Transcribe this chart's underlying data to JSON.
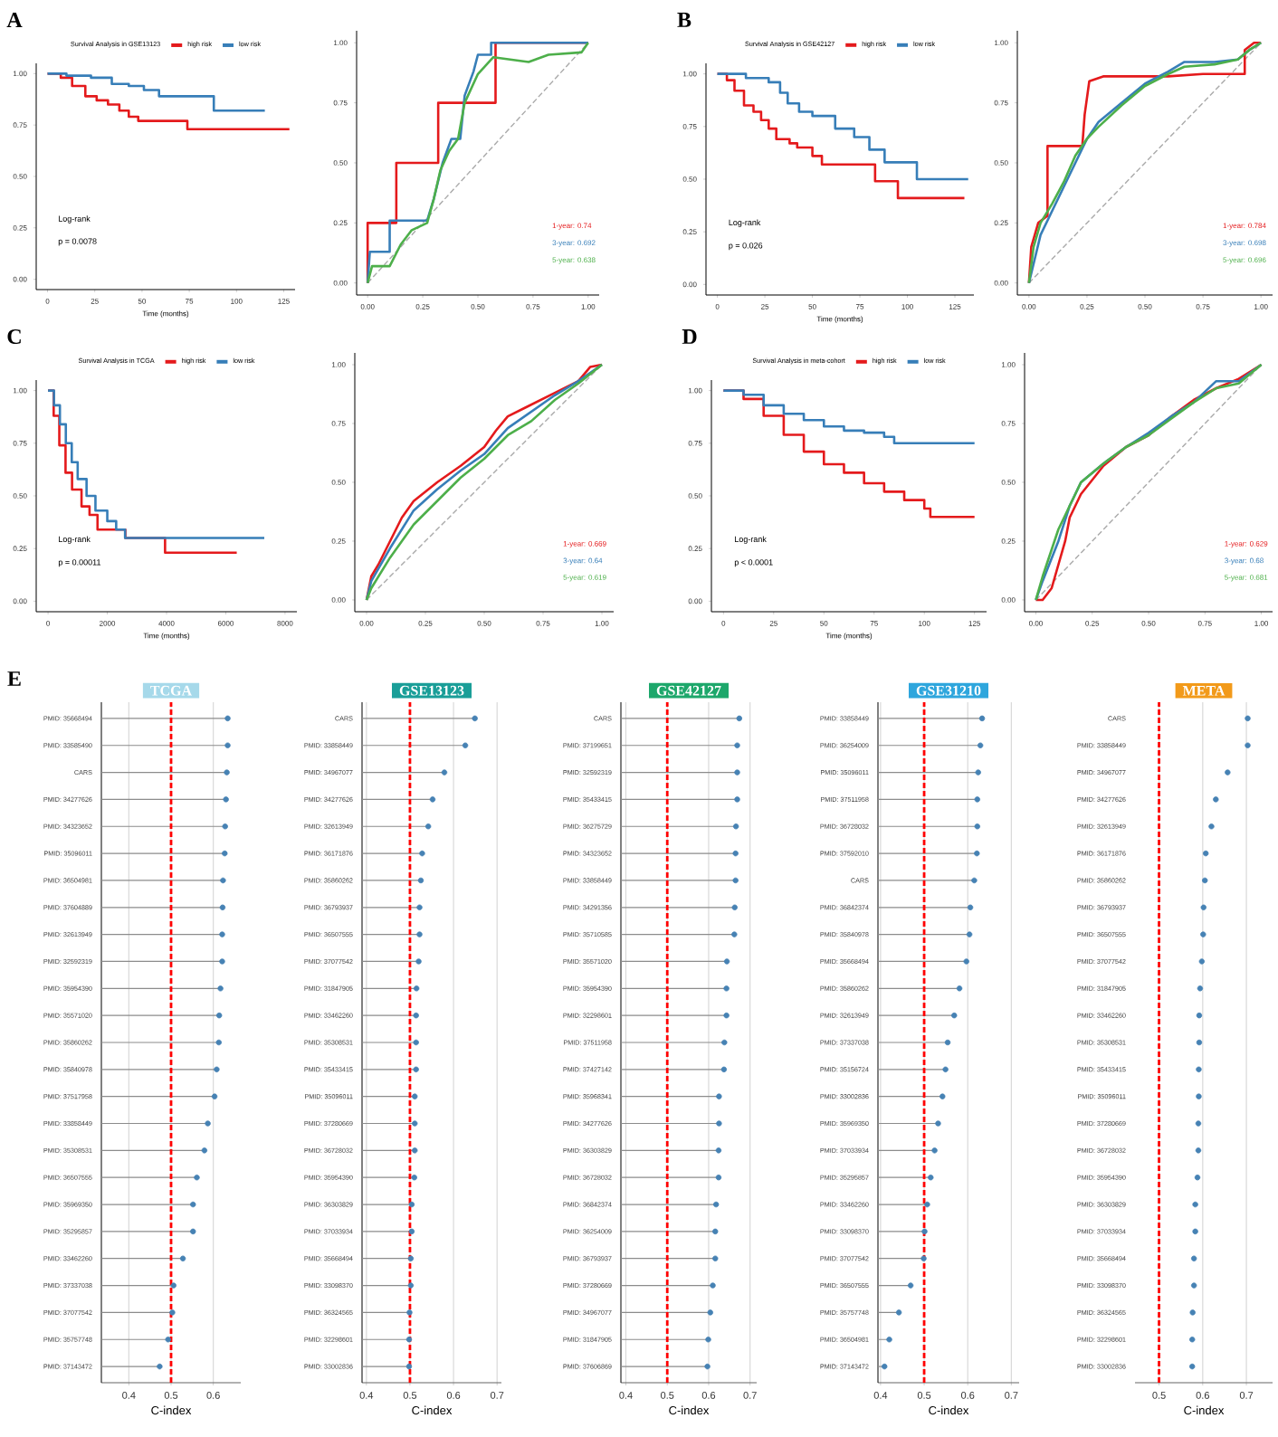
{
  "chart_data": [
    {
      "type": "step",
      "legend_title": "Survival Analysis in GSE13123",
      "legend": "top",
      "xlabel": "Time (months)",
      "xlim": [
        -6,
        131
      ],
      "xticks": [
        0,
        25,
        50,
        75,
        100,
        125
      ],
      "ylim": [
        -0.05,
        1.05
      ],
      "yticks": [
        {
          "value": 0,
          "label": "0.00"
        },
        {
          "value": 0.25,
          "label": "0.25"
        },
        {
          "value": 0.5,
          "label": "0.50"
        },
        {
          "value": 0.75,
          "label": "0.75"
        },
        {
          "value": 1,
          "label": "1.00"
        }
      ],
      "annotations": [
        "A",
        "Log-rank",
        "p = 0.0078"
      ],
      "series": [
        {
          "name": "high risk",
          "color": "#e41a1c",
          "x": [
            0,
            7,
            13,
            20,
            26,
            32,
            38,
            43,
            48,
            74,
            128
          ],
          "values": [
            1.0,
            0.98,
            0.94,
            0.89,
            0.87,
            0.85,
            0.82,
            0.79,
            0.77,
            0.73,
            0.73
          ]
        },
        {
          "name": "low risk",
          "color": "#377eb8",
          "x": [
            0,
            10,
            23,
            34,
            43,
            51,
            59,
            88,
            115
          ],
          "values": [
            1.0,
            0.99,
            0.98,
            0.95,
            0.94,
            0.92,
            0.89,
            0.82,
            0.82
          ]
        }
      ]
    },
    {
      "type": "line",
      "xlim": [
        -0.05,
        1.05
      ],
      "xticks": [
        {
          "value": 0,
          "label": "0.00"
        },
        {
          "value": 0.25,
          "label": "0.25"
        },
        {
          "value": 0.5,
          "label": "0.50"
        },
        {
          "value": 0.75,
          "label": "0.75"
        },
        {
          "value": 1,
          "label": "1.00"
        }
      ],
      "ylim": [
        -0.05,
        1.05
      ],
      "yticks": [
        {
          "value": 0,
          "label": "0.00"
        },
        {
          "value": 0.25,
          "label": "0.25"
        },
        {
          "value": 0.5,
          "label": "0.50"
        },
        {
          "value": 0.75,
          "label": "0.75"
        },
        {
          "value": 1,
          "label": "1.00"
        }
      ],
      "series": [
        {
          "color": "#aaaaaa",
          "line_style": "dashed",
          "x": [
            0,
            1
          ],
          "values": [
            0,
            1
          ]
        },
        {
          "name": "1-year: 0.74",
          "color": "#e41a1c",
          "x": [
            0,
            0,
            0.13,
            0.13,
            0.32,
            0.32,
            0.58,
            0.58,
            1
          ],
          "values": [
            0,
            0.25,
            0.25,
            0.5,
            0.5,
            0.75,
            0.75,
            1.0,
            1.0
          ]
        },
        {
          "name": "3-year: 0.692",
          "color": "#377eb8",
          "x": [
            0,
            0.01,
            0.1,
            0.1,
            0.27,
            0.3,
            0.34,
            0.38,
            0.42,
            0.44,
            0.48,
            0.5,
            0.56,
            0.56,
            1.0
          ],
          "values": [
            0,
            0.13,
            0.13,
            0.26,
            0.26,
            0.35,
            0.5,
            0.6,
            0.6,
            0.78,
            0.88,
            0.95,
            0.95,
            1.0,
            1.0
          ]
        },
        {
          "name": "5-year: 0.638",
          "color": "#4daf4a",
          "x": [
            0,
            0.02,
            0.1,
            0.15,
            0.2,
            0.27,
            0.3,
            0.33,
            0.37,
            0.41,
            0.44,
            0.47,
            0.5,
            0.57,
            0.73,
            0.82,
            0.97,
            1.0
          ],
          "values": [
            0,
            0.07,
            0.07,
            0.16,
            0.22,
            0.25,
            0.35,
            0.47,
            0.55,
            0.6,
            0.75,
            0.81,
            0.87,
            0.94,
            0.92,
            0.95,
            0.96,
            1.0
          ]
        }
      ]
    },
    {
      "type": "step",
      "legend_title": "Survival Analysis in GSE42127",
      "legend": "top",
      "xlabel": "Time (months)",
      "xlim": [
        -6,
        135
      ],
      "xticks": [
        0,
        25,
        50,
        75,
        100,
        125
      ],
      "ylim": [
        -0.05,
        1.05
      ],
      "yticks": [
        {
          "value": 0,
          "label": "0.00"
        },
        {
          "value": 0.25,
          "label": "0.25"
        },
        {
          "value": 0.5,
          "label": "0.50"
        },
        {
          "value": 0.75,
          "label": "0.75"
        },
        {
          "value": 1,
          "label": "1.00"
        }
      ],
      "annotations": [
        "B",
        "Log-rank",
        "p = 0.026"
      ],
      "series": [
        {
          "name": "high risk",
          "color": "#e41a1c",
          "x": [
            0,
            5,
            9,
            14,
            19,
            23,
            27,
            31,
            38,
            42,
            50,
            55,
            83,
            95,
            130
          ],
          "values": [
            1.0,
            0.97,
            0.92,
            0.85,
            0.82,
            0.78,
            0.74,
            0.69,
            0.67,
            0.65,
            0.61,
            0.57,
            0.49,
            0.41,
            0.41
          ]
        },
        {
          "name": "low risk",
          "color": "#377eb8",
          "x": [
            0,
            15,
            27,
            33,
            37,
            43,
            50,
            62,
            72,
            80,
            88,
            105,
            132
          ],
          "values": [
            1.0,
            0.98,
            0.96,
            0.91,
            0.86,
            0.82,
            0.8,
            0.74,
            0.7,
            0.64,
            0.58,
            0.5,
            0.5
          ]
        }
      ]
    },
    {
      "type": "line",
      "xlim": [
        -0.05,
        1.05
      ],
      "xticks": [
        {
          "value": 0,
          "label": "0.00"
        },
        {
          "value": 0.25,
          "label": "0.25"
        },
        {
          "value": 0.5,
          "label": "0.50"
        },
        {
          "value": 0.75,
          "label": "0.75"
        },
        {
          "value": 1,
          "label": "1.00"
        }
      ],
      "ylim": [
        -0.05,
        1.05
      ],
      "yticks": [
        {
          "value": 0,
          "label": "0.00"
        },
        {
          "value": 0.25,
          "label": "0.25"
        },
        {
          "value": 0.5,
          "label": "0.50"
        },
        {
          "value": 0.75,
          "label": "0.75"
        },
        {
          "value": 1,
          "label": "1.00"
        }
      ],
      "series": [
        {
          "color": "#aaaaaa",
          "line_style": "dashed",
          "x": [
            0,
            1
          ],
          "values": [
            0,
            1
          ]
        },
        {
          "name": "1-year: 0.784",
          "color": "#e41a1c",
          "x": [
            0,
            0.01,
            0.04,
            0.08,
            0.08,
            0.23,
            0.24,
            0.26,
            0.32,
            0.6,
            0.75,
            0.93,
            0.93,
            0.97,
            1
          ],
          "values": [
            0,
            0.15,
            0.25,
            0.28,
            0.57,
            0.57,
            0.7,
            0.84,
            0.86,
            0.86,
            0.87,
            0.87,
            0.97,
            1.0,
            1.0
          ]
        },
        {
          "name": "3-year: 0.698",
          "color": "#377eb8",
          "x": [
            0,
            0.02,
            0.05,
            0.1,
            0.15,
            0.2,
            0.25,
            0.3,
            0.4,
            0.5,
            0.6,
            0.67,
            0.8,
            0.9,
            0.95,
            1
          ],
          "values": [
            0,
            0.08,
            0.2,
            0.3,
            0.4,
            0.5,
            0.6,
            0.67,
            0.75,
            0.83,
            0.88,
            0.92,
            0.92,
            0.93,
            0.97,
            1.0
          ]
        },
        {
          "name": "5-year: 0.696",
          "color": "#4daf4a",
          "x": [
            0,
            0.02,
            0.05,
            0.1,
            0.15,
            0.2,
            0.25,
            0.3,
            0.4,
            0.5,
            0.6,
            0.67,
            0.8,
            0.9,
            0.95,
            1
          ],
          "values": [
            0,
            0.15,
            0.25,
            0.33,
            0.42,
            0.53,
            0.6,
            0.65,
            0.74,
            0.82,
            0.87,
            0.9,
            0.91,
            0.93,
            0.97,
            1.0
          ]
        }
      ]
    },
    {
      "type": "step",
      "legend_title": "Survival Analysis in TCGA",
      "legend": "top",
      "xlabel": "Time (months)",
      "xlim": [
        -400,
        8400
      ],
      "xticks": [
        0,
        2000,
        4000,
        6000,
        8000
      ],
      "ylim": [
        -0.05,
        1.05
      ],
      "yticks": [
        {
          "value": 0,
          "label": "0.00"
        },
        {
          "value": 0.25,
          "label": "0.25"
        },
        {
          "value": 0.5,
          "label": "0.50"
        },
        {
          "value": 0.75,
          "label": "0.75"
        },
        {
          "value": 1,
          "label": "1.00"
        }
      ],
      "annotations": [
        "C",
        "Log-rank",
        "p = 0.00011"
      ],
      "series": [
        {
          "name": "high risk",
          "color": "#e41a1c",
          "x": [
            0,
            190,
            380,
            590,
            810,
            1130,
            1400,
            1670,
            2610,
            3950,
            6370
          ],
          "values": [
            1.0,
            0.88,
            0.74,
            0.61,
            0.53,
            0.45,
            0.41,
            0.34,
            0.3,
            0.23,
            0.23
          ]
        },
        {
          "name": "low risk",
          "color": "#377eb8",
          "x": [
            0,
            200,
            400,
            600,
            800,
            1000,
            1300,
            1600,
            2000,
            2300,
            2600,
            7300
          ],
          "values": [
            1.0,
            0.93,
            0.84,
            0.75,
            0.66,
            0.58,
            0.5,
            0.43,
            0.38,
            0.34,
            0.3,
            0.3
          ]
        }
      ]
    },
    {
      "type": "line",
      "xlim": [
        -0.05,
        1.05
      ],
      "xticks": [
        {
          "value": 0,
          "label": "0.00"
        },
        {
          "value": 0.25,
          "label": "0.25"
        },
        {
          "value": 0.5,
          "label": "0.50"
        },
        {
          "value": 0.75,
          "label": "0.75"
        },
        {
          "value": 1,
          "label": "1.00"
        }
      ],
      "ylim": [
        -0.05,
        1.05
      ],
      "yticks": [
        {
          "value": 0,
          "label": "0.00"
        },
        {
          "value": 0.25,
          "label": "0.25"
        },
        {
          "value": 0.5,
          "label": "0.50"
        },
        {
          "value": 0.75,
          "label": "0.75"
        },
        {
          "value": 1,
          "label": "1.00"
        }
      ],
      "series": [
        {
          "color": "#aaaaaa",
          "line_style": "dashed",
          "x": [
            0,
            1
          ],
          "values": [
            0,
            1
          ]
        },
        {
          "name": "1-year: 0.669",
          "color": "#e41a1c",
          "x": [
            0,
            0.02,
            0.05,
            0.1,
            0.15,
            0.2,
            0.3,
            0.4,
            0.5,
            0.55,
            0.6,
            0.68,
            0.8,
            0.9,
            0.95,
            1
          ],
          "values": [
            0,
            0.1,
            0.15,
            0.25,
            0.35,
            0.42,
            0.5,
            0.57,
            0.65,
            0.72,
            0.78,
            0.82,
            0.88,
            0.93,
            0.99,
            1.0
          ]
        },
        {
          "name": "3-year: 0.64",
          "color": "#377eb8",
          "x": [
            0,
            0.02,
            0.1,
            0.2,
            0.3,
            0.4,
            0.5,
            0.6,
            0.7,
            0.8,
            0.9,
            1
          ],
          "values": [
            0,
            0.08,
            0.22,
            0.38,
            0.47,
            0.55,
            0.62,
            0.73,
            0.8,
            0.87,
            0.93,
            1.0
          ]
        },
        {
          "name": "5-year: 0.619",
          "color": "#4daf4a",
          "x": [
            0,
            0.02,
            0.1,
            0.2,
            0.3,
            0.4,
            0.5,
            0.6,
            0.7,
            0.8,
            0.9,
            1
          ],
          "values": [
            0,
            0.05,
            0.18,
            0.32,
            0.42,
            0.52,
            0.6,
            0.7,
            0.76,
            0.85,
            0.92,
            1.0
          ]
        }
      ]
    },
    {
      "type": "step",
      "legend_title": "Survival Analysis in meta-cohort",
      "legend": "top",
      "xlabel": "Time (months)",
      "xlim": [
        -6,
        131
      ],
      "xticks": [
        0,
        25,
        50,
        75,
        100,
        125
      ],
      "ylim": [
        -0.05,
        1.05
      ],
      "yticks": [
        {
          "value": 0,
          "label": "0.00"
        },
        {
          "value": 0.25,
          "label": "0.25"
        },
        {
          "value": 0.5,
          "label": "0.50"
        },
        {
          "value": 0.75,
          "label": "0.75"
        },
        {
          "value": 1,
          "label": "1.00"
        }
      ],
      "annotations": [
        "D",
        "Log-rank",
        "p < 0.0001"
      ],
      "series": [
        {
          "name": "high risk",
          "color": "#e41a1c",
          "x": [
            0,
            10,
            20,
            30,
            40,
            50,
            60,
            70,
            80,
            90,
            100,
            103,
            125
          ],
          "values": [
            1.0,
            0.96,
            0.88,
            0.79,
            0.71,
            0.65,
            0.61,
            0.56,
            0.52,
            0.48,
            0.44,
            0.4,
            0.4
          ]
        },
        {
          "name": "low risk",
          "color": "#377eb8",
          "x": [
            0,
            10,
            20,
            30,
            40,
            50,
            60,
            70,
            80,
            85,
            125
          ],
          "values": [
            1.0,
            0.98,
            0.93,
            0.89,
            0.86,
            0.83,
            0.81,
            0.8,
            0.78,
            0.75,
            0.75
          ]
        }
      ]
    },
    {
      "type": "line",
      "xlim": [
        -0.05,
        1.05
      ],
      "xticks": [
        {
          "value": 0,
          "label": "0.00"
        },
        {
          "value": 0.25,
          "label": "0.25"
        },
        {
          "value": 0.5,
          "label": "0.50"
        },
        {
          "value": 0.75,
          "label": "0.75"
        },
        {
          "value": 1,
          "label": "1.00"
        }
      ],
      "ylim": [
        -0.05,
        1.05
      ],
      "yticks": [
        {
          "value": 0,
          "label": "0.00"
        },
        {
          "value": 0.25,
          "label": "0.25"
        },
        {
          "value": 0.5,
          "label": "0.50"
        },
        {
          "value": 0.75,
          "label": "0.75"
        },
        {
          "value": 1,
          "label": "1.00"
        }
      ],
      "series": [
        {
          "color": "#aaaaaa",
          "line_style": "dashed",
          "x": [
            0,
            1
          ],
          "values": [
            0,
            1
          ]
        },
        {
          "name": "1-year: 0.629",
          "color": "#e41a1c",
          "x": [
            0,
            0.03,
            0.07,
            0.1,
            0.13,
            0.15,
            0.2,
            0.3,
            0.4,
            0.5,
            0.6,
            0.7,
            0.8,
            0.9,
            1
          ],
          "values": [
            0,
            0,
            0.05,
            0.15,
            0.25,
            0.35,
            0.45,
            0.57,
            0.65,
            0.7,
            0.78,
            0.85,
            0.9,
            0.94,
            1.0
          ]
        },
        {
          "name": "3-year: 0.68",
          "color": "#377eb8",
          "x": [
            0,
            0.03,
            0.1,
            0.15,
            0.2,
            0.3,
            0.4,
            0.5,
            0.6,
            0.7,
            0.8,
            0.9,
            1
          ],
          "values": [
            0,
            0.08,
            0.25,
            0.4,
            0.5,
            0.58,
            0.65,
            0.71,
            0.78,
            0.84,
            0.93,
            0.93,
            1.0
          ]
        },
        {
          "name": "5-year: 0.681",
          "color": "#4daf4a",
          "x": [
            0,
            0.03,
            0.1,
            0.15,
            0.2,
            0.3,
            0.4,
            0.5,
            0.6,
            0.7,
            0.8,
            0.9,
            1
          ],
          "values": [
            0,
            0.1,
            0.3,
            0.4,
            0.5,
            0.58,
            0.65,
            0.7,
            0.77,
            0.84,
            0.9,
            0.92,
            1.0
          ]
        }
      ]
    },
    {
      "type": "lollipop",
      "orientation": "horizontal",
      "title": "TCGA",
      "xlabel": "C-index",
      "color": "#4682b4",
      "marker": "circle",
      "grid": "x",
      "xlim": [
        0.335,
        0.665
      ],
      "xticks": [
        0.4,
        0.5,
        0.6
      ],
      "annotations": [
        "E"
      ],
      "ref_lines": [
        {
          "axis": "x",
          "value": 0.5,
          "color": "#ff0000",
          "line_style": "dashed"
        }
      ],
      "categories": [
        "PMID: 35668494",
        "PMID: 33585490",
        "CARS",
        "PMID: 34277626",
        "PMID: 34323652",
        "PMID: 35096011",
        "PMID: 36504981",
        "PMID: 37604889",
        "PMID: 32613949",
        "PMID: 32592319",
        "PMID: 35954390",
        "PMID: 35571020",
        "PMID: 35860262",
        "PMID: 35840978",
        "PMID: 37517958",
        "PMID: 33858449",
        "PMID: 35308531",
        "PMID: 36507555",
        "PMID: 35969350",
        "PMID: 35295857",
        "PMID: 33462260",
        "PMID: 37337038",
        "PMID: 37077542",
        "PMID: 35757748",
        "PMID: 37143472"
      ],
      "values": [
        0.634,
        0.634,
        0.632,
        0.63,
        0.628,
        0.627,
        0.623,
        0.622,
        0.621,
        0.621,
        0.617,
        0.614,
        0.613,
        0.608,
        0.603,
        0.587,
        0.579,
        0.561,
        0.552,
        0.552,
        0.528,
        0.506,
        0.503,
        0.493,
        0.473
      ]
    },
    {
      "type": "lollipop",
      "orientation": "horizontal",
      "title": "GSE13123",
      "xlabel": "C-index",
      "color": "#4682b4",
      "marker": "circle",
      "grid": "x",
      "xlim": [
        0.39,
        0.71
      ],
      "xticks": [
        0.4,
        0.5,
        0.6,
        0.7
      ],
      "ref_lines": [
        {
          "axis": "x",
          "value": 0.5,
          "color": "#ff0000",
          "line_style": "dashed"
        }
      ],
      "categories": [
        "CARS",
        "PMID: 33858449",
        "PMID: 34967077",
        "PMID: 34277626",
        "PMID: 32613949",
        "PMID: 36171876",
        "PMID: 35860262",
        "PMID: 36793937",
        "PMID: 36507555",
        "PMID: 37077542",
        "PMID: 31847905",
        "PMID: 33462260",
        "PMID: 35308531",
        "PMID: 35433415",
        "PMID: 35096011",
        "PMID: 37280669",
        "PMID: 36728032",
        "PMID: 35954390",
        "PMID: 36303829",
        "PMID: 37033934",
        "PMID: 35668494",
        "PMID: 33098370",
        "PMID: 36324565",
        "PMID: 32298601",
        "PMID: 33002836"
      ],
      "values": [
        0.649,
        0.627,
        0.579,
        0.552,
        0.542,
        0.528,
        0.525,
        0.522,
        0.522,
        0.52,
        0.515,
        0.514,
        0.514,
        0.514,
        0.511,
        0.511,
        0.511,
        0.51,
        0.504,
        0.504,
        0.502,
        0.502,
        0.499,
        0.498,
        0.498
      ]
    },
    {
      "type": "lollipop",
      "orientation": "horizontal",
      "title": "GSE42127",
      "xlabel": "C-index",
      "color": "#4682b4",
      "marker": "circle",
      "grid": "x",
      "xlim": [
        0.388,
        0.716
      ],
      "xticks": [
        0.4,
        0.5,
        0.6,
        0.7
      ],
      "ref_lines": [
        {
          "axis": "x",
          "value": 0.5,
          "color": "#ff0000",
          "line_style": "dashed"
        }
      ],
      "categories": [
        "CARS",
        "PMID: 37199651",
        "PMID: 32592319",
        "PMID: 35433415",
        "PMID: 36275729",
        "PMID: 34323652",
        "PMID: 33858449",
        "PMID: 34291356",
        "PMID: 35710585",
        "PMID: 35571020",
        "PMID: 35954390",
        "PMID: 32298601",
        "PMID: 37511958",
        "PMID: 37427142",
        "PMID: 35968341",
        "PMID: 34277626",
        "PMID: 36303829",
        "PMID: 36728032",
        "PMID: 36842374",
        "PMID: 36254009",
        "PMID: 36793937",
        "PMID: 37280669",
        "PMID: 34967077",
        "PMID: 31847905",
        "PMID: 37606869"
      ],
      "values": [
        0.674,
        0.669,
        0.669,
        0.669,
        0.666,
        0.665,
        0.665,
        0.663,
        0.662,
        0.644,
        0.643,
        0.643,
        0.638,
        0.637,
        0.625,
        0.625,
        0.624,
        0.624,
        0.618,
        0.616,
        0.616,
        0.61,
        0.604,
        0.599,
        0.597
      ]
    },
    {
      "type": "lollipop",
      "orientation": "horizontal",
      "title": "GSE31210",
      "xlabel": "C-index",
      "color": "#4682b4",
      "marker": "circle",
      "grid": "x",
      "xlim": [
        0.394,
        0.718
      ],
      "xticks": [
        0.4,
        0.5,
        0.6,
        0.7
      ],
      "ref_lines": [
        {
          "axis": "x",
          "value": 0.5,
          "color": "#ff0000",
          "line_style": "dashed"
        }
      ],
      "categories": [
        "PMID: 33858449",
        "PMID: 36254009",
        "PMID: 35096011",
        "PMID: 37511958",
        "PMID: 36728032",
        "PMID: 37592010",
        "CARS",
        "PMID: 36842374",
        "PMID: 35840978",
        "PMID: 35668494",
        "PMID: 35860262",
        "PMID: 32613949",
        "PMID: 37337038",
        "PMID: 35156724",
        "PMID: 33002836",
        "PMID: 35969350",
        "PMID: 37033934",
        "PMID: 35295857",
        "PMID: 33462260",
        "PMID: 33098370",
        "PMID: 37077542",
        "PMID: 36507555",
        "PMID: 35757748",
        "PMID: 36504981",
        "PMID: 37143472"
      ],
      "values": [
        0.633,
        0.629,
        0.624,
        0.622,
        0.622,
        0.621,
        0.615,
        0.606,
        0.604,
        0.597,
        0.581,
        0.569,
        0.554,
        0.549,
        0.542,
        0.532,
        0.524,
        0.515,
        0.507,
        0.501,
        0.499,
        0.469,
        0.442,
        0.42,
        0.409
      ]
    },
    {
      "type": "scatter",
      "orientation": "horizontal",
      "title": "META",
      "xlabel": "C-index",
      "color": "#4682b4",
      "marker": "circle",
      "grid": "x",
      "xlim": [
        0.445,
        0.76
      ],
      "xticks": [
        0.5,
        0.6,
        0.7
      ],
      "ref_lines": [
        {
          "axis": "x",
          "value": 0.5,
          "color": "#ff0000",
          "line_style": "dashed"
        }
      ],
      "categories": [
        "CARS",
        "PMID: 33858449",
        "PMID: 34967077",
        "PMID: 34277626",
        "PMID: 32613949",
        "PMID: 36171876",
        "PMID: 35860262",
        "PMID: 36793937",
        "PMID: 36507555",
        "PMID: 37077542",
        "PMID: 31847905",
        "PMID: 33462260",
        "PMID: 35308531",
        "PMID: 35433415",
        "PMID: 35096011",
        "PMID: 37280669",
        "PMID: 36728032",
        "PMID: 35954390",
        "PMID: 36303829",
        "PMID: 37033934",
        "PMID: 35668494",
        "PMID: 33098370",
        "PMID: 36324565",
        "PMID: 32298601",
        "PMID: 33002836"
      ],
      "values": [
        0.703,
        0.703,
        0.657,
        0.63,
        0.62,
        0.607,
        0.605,
        0.602,
        0.601,
        0.598,
        0.594,
        0.592,
        0.592,
        0.591,
        0.591,
        0.59,
        0.59,
        0.588,
        0.583,
        0.583,
        0.58,
        0.58,
        0.577,
        0.576,
        0.576
      ]
    }
  ]
}
